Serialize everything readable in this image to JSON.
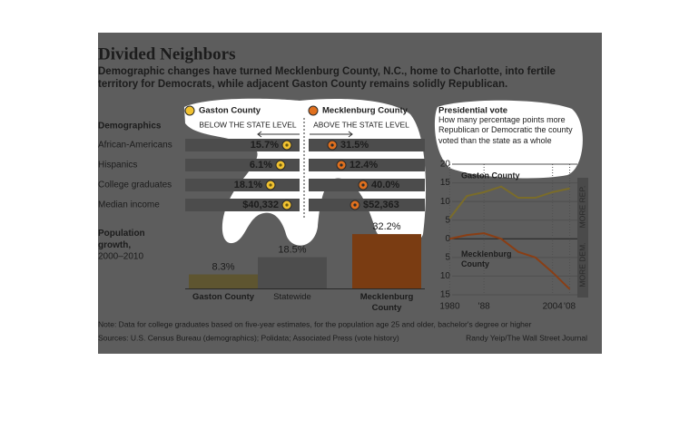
{
  "title": "Divided Neighbors",
  "subtitle": "Demographic changes have turned Mecklenburg County, N.C., home to Charlotte, into fertile territory for Democrats, while adjacent Gaston County remains solidly Republican.",
  "note": "Note: Data for college graduates based on five-year estimates, for the population age 25 and older, bachelor's degree or higher",
  "sources": "Sources: U.S. Census Bureau (demographics); Polidata; Associated Press (vote history)",
  "credit": "Randy Yeip/The Wall Street Journal",
  "chart_data": [
    {
      "type": "dot",
      "title": "Demographics",
      "categories": [
        "African-Americans",
        "Hispanics",
        "College graduates",
        "Median income"
      ],
      "annotations": [
        "BELOW THE STATE LEVEL",
        "ABOVE THE STATE LEVEL"
      ],
      "series": [
        {
          "name": "Gaston County",
          "color": "#f2c230",
          "values": [
            15.7,
            6.1,
            18.1,
            40332
          ],
          "value_labels": [
            "15.7%",
            "6.1%",
            "18.1%",
            "$40,332"
          ]
        },
        {
          "name": "Mecklenburg County",
          "color": "#e0701e",
          "values": [
            31.5,
            12.4,
            40.0,
            52363
          ],
          "value_labels": [
            "31.5%",
            "12.4%",
            "40.0%",
            "$52,363"
          ]
        }
      ]
    },
    {
      "type": "bar",
      "title": "Population growth,",
      "subtitle": "2000–2010",
      "categories": [
        "Gaston County",
        "Statewide",
        "Mecklenburg County"
      ],
      "values": [
        8.3,
        18.5,
        32.2
      ],
      "value_labels": [
        "8.3%",
        "18.5%",
        "32.2%"
      ],
      "colors": [
        "#5e5530",
        "#4d4d4d",
        "#7a3c12"
      ]
    },
    {
      "type": "line",
      "title": "Presidential vote",
      "subtitle": "How many percentage points more Republican or Democratic the county voted than the state as a whole",
      "x": [
        1980,
        1984,
        1988,
        1992,
        1996,
        2000,
        2004,
        2008
      ],
      "xlim": [
        1978,
        2010
      ],
      "xticks": [
        1980,
        {
          "value": 1988,
          "label": "'88"
        },
        2004,
        {
          "value": 2008,
          "label": "'08"
        }
      ],
      "ylim": [
        -15,
        20
      ],
      "yticks": [
        20,
        15,
        10,
        5,
        0,
        {
          "value": -5,
          "label": "5"
        },
        {
          "value": -10,
          "label": "10"
        },
        {
          "value": -15,
          "label": "15"
        }
      ],
      "grid": true,
      "annotations": [
        "MORE REP.",
        "MORE DEM."
      ],
      "series": [
        {
          "name": "Gaston County",
          "color": "#7a6c2a",
          "values": [
            5.5,
            11.5,
            12.5,
            14,
            11,
            11,
            12.5,
            13.5
          ]
        },
        {
          "name": "Mecklenburg County",
          "color": "#8a3e14",
          "values": [
            0,
            1,
            1.5,
            0,
            -3.5,
            -5,
            -9,
            -13.5
          ]
        }
      ]
    }
  ]
}
